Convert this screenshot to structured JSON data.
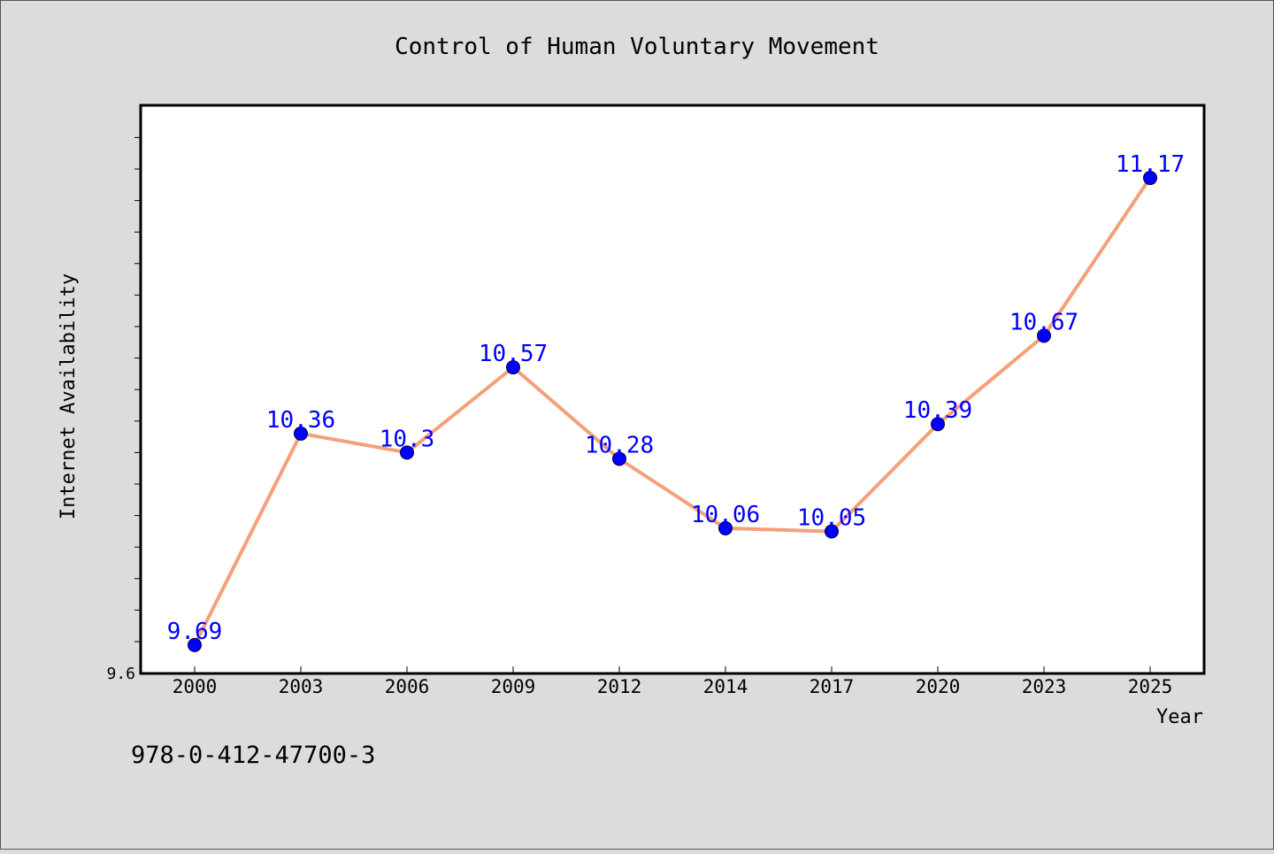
{
  "chart_data": {
    "type": "line",
    "title": "Control of Human Voluntary Movement",
    "xlabel": "Year",
    "ylabel": "Internet Availability",
    "categories": [
      "2000",
      "2003",
      "2006",
      "2009",
      "2012",
      "2014",
      "2017",
      "2020",
      "2023",
      "2025"
    ],
    "series": [
      {
        "values": [
          9.69,
          10.36,
          10.3,
          10.57,
          10.28,
          10.06,
          10.05,
          10.39,
          10.67,
          11.17
        ]
      }
    ],
    "data_labels": [
      "9.69",
      "10.36",
      "10.3",
      "10.57",
      "10.28",
      "10.06",
      "10.05",
      "10.39",
      "10.67",
      "11.17"
    ],
    "y_tick_labels": [
      "9.6"
    ],
    "ylim": [
      9.6,
      11.4
    ],
    "grid": false,
    "line_color": "#f4a07a",
    "marker_color": "#0000ff",
    "label_color": "#0000ff",
    "background_color": "#dcdcdc"
  },
  "footer": {
    "isbn": "978-0-412-47700-3"
  }
}
